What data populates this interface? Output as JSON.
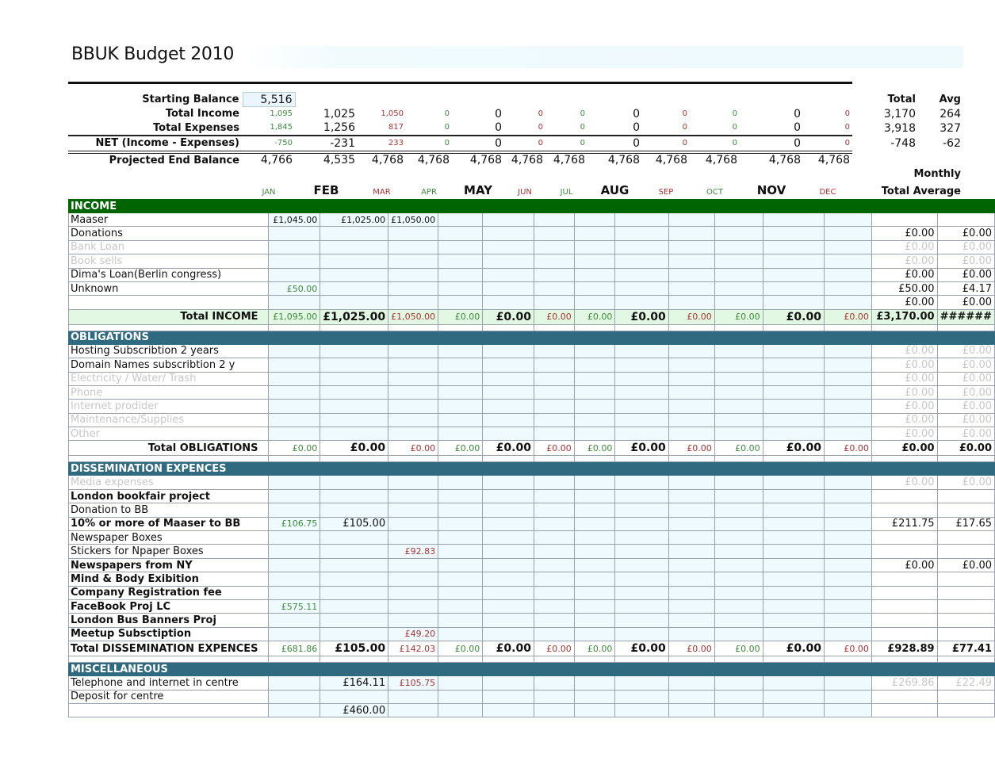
{
  "title": "BBUK Budget 2010",
  "months": [
    "JAN",
    "FEB",
    "MAR",
    "APR",
    "MAY",
    "JUN",
    "JUL",
    "AUG",
    "SEP",
    "OCT",
    "NOV",
    "DEC"
  ],
  "summary": {
    "total_header": "Total",
    "avg_header": "Avg",
    "monthly_label": "Monthly",
    "total_average_label": "Total Average",
    "rows": [
      {
        "label": "Starting Balance",
        "values": [
          "5,516",
          "",
          "",
          "",
          "",
          "",
          "",
          "",
          "",
          "",
          "",
          ""
        ],
        "total": "",
        "avg": ""
      },
      {
        "label": "Total Income",
        "values": [
          "1,095",
          "1,025",
          "1,050",
          "0",
          "0",
          "0",
          "0",
          "0",
          "0",
          "0",
          "0",
          "0"
        ],
        "total": "3,170",
        "avg": "264"
      },
      {
        "label": "Total Expenses",
        "values": [
          "1,845",
          "1,256",
          "817",
          "0",
          "0",
          "0",
          "0",
          "0",
          "0",
          "0",
          "0",
          "0"
        ],
        "total": "3,918",
        "avg": "327"
      },
      {
        "label": "NET (Income - Expenses)",
        "values": [
          "-750",
          "-231",
          "233",
          "0",
          "0",
          "0",
          "0",
          "0",
          "0",
          "0",
          "0",
          "0"
        ],
        "total": "-748",
        "avg": "-62"
      },
      {
        "label": "Projected End Balance",
        "values": [
          "4,766",
          "4,535",
          "4,768",
          "4,768",
          "4,768",
          "4,768",
          "4,768",
          "4,768",
          "4,768",
          "4,768",
          "4,768",
          "4,768"
        ],
        "total": "",
        "avg": ""
      }
    ]
  },
  "colors": {
    "income_header": "#006400",
    "section_header": "#2f6a80",
    "month_fill": "#eefafd",
    "total_income_fill": "#e2f8e2",
    "green_text": "#3d8a3d",
    "red_text": "#aa3333"
  },
  "sections": [
    {
      "title": "INCOME",
      "green": true,
      "rows": [
        {
          "label": "Maaser",
          "plain": true,
          "cells": [
            "£1,045.00",
            "£1,025.00",
            "£1,050.00",
            "",
            "",
            "",
            "",
            "",
            "",
            "",
            "",
            "",
            "",
            ""
          ]
        },
        {
          "label": "Donations",
          "cells": [
            "",
            "",
            "",
            "",
            "",
            "",
            "",
            "",
            "",
            "",
            "",
            "",
            "£0.00",
            "£0.00"
          ]
        },
        {
          "label": "Bank Loan",
          "faded": true,
          "cells": [
            "",
            "",
            "",
            "",
            "",
            "",
            "",
            "",
            "",
            "",
            "",
            "",
            "£0.00",
            "£0.00"
          ]
        },
        {
          "label": "Book sells",
          "faded": true,
          "cells": [
            "",
            "",
            "",
            "",
            "",
            "",
            "",
            "",
            "",
            "",
            "",
            "",
            "£0.00",
            "£0.00"
          ]
        },
        {
          "label": "Dima's Loan(Berlin congress)",
          "cells": [
            "",
            "",
            "",
            "",
            "",
            "",
            "",
            "",
            "",
            "",
            "",
            "",
            "£0.00",
            "£0.00"
          ]
        },
        {
          "label": "Unknown",
          "cells": [
            "£50.00",
            "",
            "",
            "",
            "",
            "",
            "",
            "",
            "",
            "",
            "",
            "",
            "£50.00",
            "£4.17"
          ]
        },
        {
          "label": "",
          "cells": [
            "",
            "",
            "",
            "",
            "",
            "",
            "",
            "",
            "",
            "",
            "",
            "",
            "£0.00",
            "£0.00"
          ]
        }
      ],
      "total": {
        "label": "Total INCOME",
        "greenbg": true,
        "cells": [
          "£1,095.00",
          "£1,025.00",
          "£1,050.00",
          "£0.00",
          "£0.00",
          "£0.00",
          "£0.00",
          "£0.00",
          "£0.00",
          "£0.00",
          "£0.00",
          "£0.00",
          "£3,170.00",
          "######"
        ]
      }
    },
    {
      "title": "OBLIGATIONS",
      "rows": [
        {
          "label": "Hosting Subscribtion 2 years",
          "cells": [
            "",
            "",
            "",
            "",
            "",
            "",
            "",
            "",
            "",
            "",
            "",
            "",
            "£0.00",
            "£0.00"
          ],
          "faded_totals": true
        },
        {
          "label": "Domain Names subscribtion 2 y",
          "cells": [
            "",
            "",
            "",
            "",
            "",
            "",
            "",
            "",
            "",
            "",
            "",
            "",
            "£0.00",
            "£0.00"
          ],
          "faded_totals": true
        },
        {
          "label": "Electricity / Water/ Trash",
          "faded": true,
          "cells": [
            "",
            "",
            "",
            "",
            "",
            "",
            "",
            "",
            "",
            "",
            "",
            "",
            "£0.00",
            "£0.00"
          ]
        },
        {
          "label": "Phone",
          "faded": true,
          "cells": [
            "",
            "",
            "",
            "",
            "",
            "",
            "",
            "",
            "",
            "",
            "",
            "",
            "£0.00",
            "£0.00"
          ]
        },
        {
          "label": "Internet prodider",
          "faded": true,
          "cells": [
            "",
            "",
            "",
            "",
            "",
            "",
            "",
            "",
            "",
            "",
            "",
            "",
            "£0.00",
            "£0.00"
          ]
        },
        {
          "label": "Maintenance/Supplies",
          "faded": true,
          "cells": [
            "",
            "",
            "",
            "",
            "",
            "",
            "",
            "",
            "",
            "",
            "",
            "",
            "£0.00",
            "£0.00"
          ]
        },
        {
          "label": "Other",
          "faded": true,
          "cells": [
            "",
            "",
            "",
            "",
            "",
            "",
            "",
            "",
            "",
            "",
            "",
            "",
            "£0.00",
            "£0.00"
          ]
        }
      ],
      "total": {
        "label": "Total OBLIGATIONS",
        "cells": [
          "£0.00",
          "£0.00",
          "£0.00",
          "£0.00",
          "£0.00",
          "£0.00",
          "£0.00",
          "£0.00",
          "£0.00",
          "£0.00",
          "£0.00",
          "£0.00",
          "£0.00",
          "£0.00"
        ]
      }
    },
    {
      "title": "DISSEMINATION EXPENCES",
      "rows": [
        {
          "label": "Media expenses",
          "faded": true,
          "cells": [
            "",
            "",
            "",
            "",
            "",
            "",
            "",
            "",
            "",
            "",
            "",
            "",
            "£0.00",
            "£0.00"
          ]
        },
        {
          "label": "London bookfair project",
          "bold": true,
          "cells": [
            "",
            "",
            "",
            "",
            "",
            "",
            "",
            "",
            "",
            "",
            "",
            "",
            "",
            ""
          ]
        },
        {
          "label": "Donation to BB",
          "cells": [
            "",
            "",
            "",
            "",
            "",
            "",
            "",
            "",
            "",
            "",
            "",
            "",
            "",
            ""
          ]
        },
        {
          "label": "10% or more of Maaser to BB",
          "bold": true,
          "cells": [
            "£106.75",
            "£105.00",
            "",
            "",
            "",
            "",
            "",
            "",
            "",
            "",
            "",
            "",
            "£211.75",
            "£17.65"
          ]
        },
        {
          "label": "Newspaper Boxes",
          "cells": [
            "",
            "",
            "",
            "",
            "",
            "",
            "",
            "",
            "",
            "",
            "",
            "",
            "",
            ""
          ]
        },
        {
          "label": "Stickers for Npaper Boxes",
          "cells": [
            "",
            "",
            "£92.83",
            "",
            "",
            "",
            "",
            "",
            "",
            "",
            "",
            "",
            "",
            ""
          ]
        },
        {
          "label": "Newspapers from NY",
          "bold": true,
          "cells": [
            "",
            "",
            "",
            "",
            "",
            "",
            "",
            "",
            "",
            "",
            "",
            "",
            "£0.00",
            "£0.00"
          ]
        },
        {
          "label": "Mind & Body Exibition",
          "bold": true,
          "cells": [
            "",
            "",
            "",
            "",
            "",
            "",
            "",
            "",
            "",
            "",
            "",
            "",
            "",
            ""
          ]
        },
        {
          "label": "Company Registration fee",
          "bold": true,
          "cells": [
            "",
            "",
            "",
            "",
            "",
            "",
            "",
            "",
            "",
            "",
            "",
            "",
            "",
            ""
          ]
        },
        {
          "label": "FaceBook Proj LC",
          "bold": true,
          "cells": [
            "£575.11",
            "",
            "",
            "",
            "",
            "",
            "",
            "",
            "",
            "",
            "",
            "",
            "",
            ""
          ]
        },
        {
          "label": "London Bus Banners Proj",
          "bold": true,
          "cells": [
            "",
            "",
            "",
            "",
            "",
            "",
            "",
            "",
            "",
            "",
            "",
            "",
            "",
            ""
          ]
        },
        {
          "label": "Meetup Subsctiption",
          "bold": true,
          "cells": [
            "",
            "",
            "£49.20",
            "",
            "",
            "",
            "",
            "",
            "",
            "",
            "",
            "",
            "",
            ""
          ]
        }
      ],
      "total": {
        "label": "Total DISSEMINATION EXPENCES",
        "cells": [
          "£681.86",
          "£105.00",
          "£142.03",
          "£0.00",
          "£0.00",
          "£0.00",
          "£0.00",
          "£0.00",
          "£0.00",
          "£0.00",
          "£0.00",
          "£0.00",
          "£928.89",
          "£77.41"
        ]
      }
    },
    {
      "title": "MISCELLANEOUS",
      "rows": [
        {
          "label": "Telephone and internet in centre",
          "cells": [
            "",
            "£164.11",
            "£105.75",
            "",
            "",
            "",
            "",
            "",
            "",
            "",
            "",
            "",
            "£269.86",
            "£22.49"
          ],
          "faded_totals": true
        },
        {
          "label": "Deposit for centre",
          "cells": [
            "",
            "",
            "",
            "",
            "",
            "",
            "",
            "",
            "",
            "",
            "",
            "",
            "",
            ""
          ]
        },
        {
          "label": "",
          "cells": [
            "",
            "£460.00",
            "",
            "",
            "",
            "",
            "",
            "",
            "",
            "",
            "",
            "",
            "",
            ""
          ]
        }
      ]
    }
  ]
}
